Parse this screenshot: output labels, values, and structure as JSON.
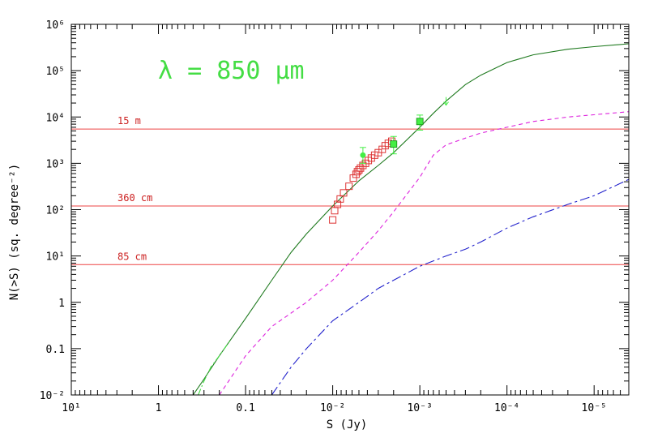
{
  "chart_data": {
    "type": "line",
    "title": "",
    "annotation": "λ = 850  μm",
    "annotation_color": "#44dd44",
    "xlabel": "S (Jy)",
    "ylabel": "N(>S) (sq. degree⁻²)",
    "x_scale": "log",
    "y_scale": "log",
    "x_reversed": true,
    "xlim": [
      10,
      4e-06
    ],
    "ylim": [
      0.01,
      1000000
    ],
    "x_ticks": [
      {
        "value": 10,
        "label": "10¹"
      },
      {
        "value": 1,
        "label": "1"
      },
      {
        "value": 0.1,
        "label": "0.1"
      },
      {
        "value": 0.01,
        "label": "10⁻²"
      },
      {
        "value": 0.001,
        "label": "10⁻³"
      },
      {
        "value": 0.0001,
        "label": "10⁻⁴"
      },
      {
        "value": 1e-05,
        "label": "10⁻⁵"
      }
    ],
    "y_ticks": [
      {
        "value": 0.01,
        "label": "10⁻²"
      },
      {
        "value": 0.1,
        "label": "0.1"
      },
      {
        "value": 1,
        "label": "1"
      },
      {
        "value": 10,
        "label": "10¹"
      },
      {
        "value": 100,
        "label": "10²"
      },
      {
        "value": 1000,
        "label": "10³"
      },
      {
        "value": 10000,
        "label": "10⁴"
      },
      {
        "value": 100000,
        "label": "10⁵"
      },
      {
        "value": 1000000,
        "label": "10⁶"
      }
    ],
    "grid": false,
    "series": [
      {
        "style": "solid",
        "color": "#1f7a1f",
        "x": [
          0.4,
          0.3,
          0.2,
          0.1,
          0.05,
          0.03,
          0.02,
          0.01,
          0.005,
          0.003,
          0.002,
          0.001,
          0.0007,
          0.0005,
          0.0003,
          0.0002,
          0.0001,
          5e-05,
          2e-05,
          1e-05,
          4e-06
        ],
        "y": [
          0.01,
          0.022,
          0.07,
          0.45,
          3,
          12,
          30,
          120,
          420,
          900,
          1700,
          6000,
          12000,
          22000,
          50000,
          80000,
          150000,
          220000,
          290000,
          330000,
          380000
        ]
      },
      {
        "style": "dash-dot",
        "color": "#44dd44",
        "x": [
          0.35,
          0.3,
          0.25,
          0.2,
          0.15
        ],
        "y": [
          0.01,
          0.02,
          0.04,
          0.07,
          0.15
        ]
      },
      {
        "style": "dashed",
        "color": "#dd22dd",
        "x": [
          0.2,
          0.1,
          0.05,
          0.02,
          0.01,
          0.005,
          0.003,
          0.002,
          0.001,
          0.0007,
          0.0005,
          0.0003,
          0.0002,
          0.0001,
          5e-05,
          2e-05,
          4e-06
        ],
        "y": [
          0.01,
          0.07,
          0.3,
          1,
          3,
          12,
          35,
          90,
          500,
          1500,
          2500,
          3500,
          4500,
          6000,
          8000,
          10000,
          13000
        ]
      },
      {
        "style": "long-dash",
        "color": "#2222cc",
        "x": [
          0.05,
          0.03,
          0.02,
          0.01,
          0.005,
          0.003,
          0.002,
          0.001,
          0.0005,
          0.0003,
          0.0002,
          0.0001,
          5e-05,
          2e-05,
          1e-05,
          4e-06
        ],
        "y": [
          0.01,
          0.04,
          0.1,
          0.4,
          1,
          2,
          3,
          6,
          10,
          14,
          20,
          40,
          70,
          130,
          200,
          450
        ]
      }
    ],
    "reference_lines": [
      {
        "label": "15  m",
        "y": 5500,
        "color": "#ee4444"
      },
      {
        "label": "360 cm",
        "y": 120,
        "color": "#ee4444"
      },
      {
        "label": "85  cm",
        "y": 6.5,
        "color": "#ee4444"
      }
    ],
    "square_points": {
      "color": "#dd3333",
      "x": [
        0.01,
        0.0095,
        0.0088,
        0.0082,
        0.0075,
        0.0065,
        0.0058,
        0.0054,
        0.0052,
        0.005,
        0.0048,
        0.0045,
        0.0042,
        0.0039,
        0.0036,
        0.0033,
        0.003,
        0.0027,
        0.0025,
        0.0023,
        0.0021
      ],
      "y": [
        60,
        95,
        130,
        170,
        230,
        320,
        480,
        580,
        660,
        720,
        790,
        900,
        1000,
        1150,
        1300,
        1500,
        1700,
        2000,
        2400,
        2700,
        3000
      ]
    },
    "filled_points": {
      "color": "#44ee44",
      "points": [
        {
          "x": 0.0045,
          "y": 1500,
          "ylow": 1000,
          "yhigh": 2200,
          "shape": "circle"
        },
        {
          "x": 0.002,
          "y": 2600,
          "ylow": 1600,
          "yhigh": 3800,
          "shape": "square"
        },
        {
          "x": 0.001,
          "y": 8000,
          "ylow": 5200,
          "yhigh": 11000,
          "shape": "square"
        }
      ],
      "upper_limit": {
        "x": 0.0005,
        "y": 18000
      }
    }
  }
}
